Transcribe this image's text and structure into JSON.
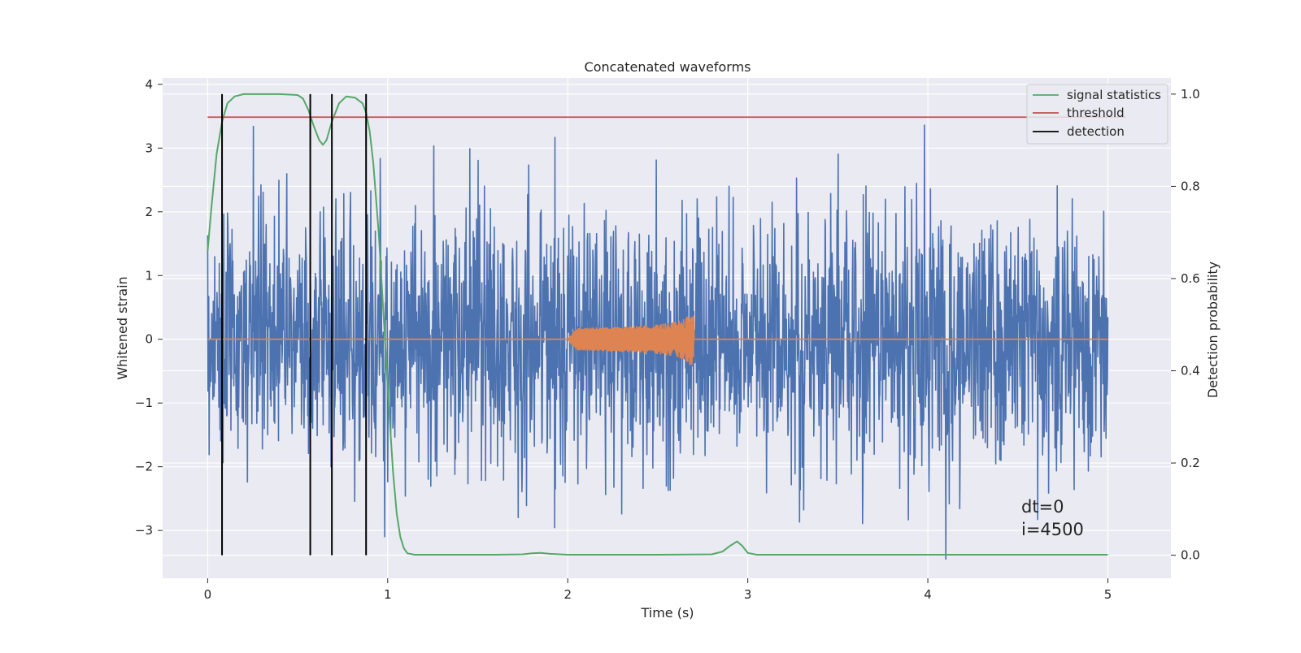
{
  "chart_data": {
    "type": "line",
    "title": "Concatenated waveforms",
    "xlabel": "Time (s)",
    "ylabel_left": "Whitened strain",
    "ylabel_right": "Detection probability",
    "xlim": [
      -0.25,
      5.35
    ],
    "ylim_left": [
      -3.75,
      4.1
    ],
    "ylim_right": [
      -0.05,
      1.035
    ],
    "x_ticks": [
      0,
      1,
      2,
      3,
      4,
      5
    ],
    "x_tick_labels": [
      "0",
      "1",
      "2",
      "3",
      "4",
      "5"
    ],
    "y_left_ticks": [
      -3,
      -2,
      -1,
      0,
      1,
      2,
      3,
      4
    ],
    "y_left_tick_labels": [
      "−3",
      "−2",
      "−1",
      "0",
      "1",
      "2",
      "3",
      "4"
    ],
    "y_right_ticks": [
      0.0,
      0.2,
      0.4,
      0.6,
      0.8,
      1.0
    ],
    "y_right_tick_labels": [
      "0.0",
      "0.2",
      "0.4",
      "0.6",
      "0.8",
      "1.0"
    ],
    "grid": true,
    "legend_position": "top-right",
    "legend": [
      {
        "label": "signal statistics",
        "color": "#55a868"
      },
      {
        "label": "threshold",
        "color": "#c44e52"
      },
      {
        "label": "detection",
        "color": "#000000"
      }
    ],
    "colors": {
      "strain": "#4c72b0",
      "injected_waveform": "#dd8452",
      "signal_statistics": "#55a868",
      "threshold": "#c44e52",
      "detection": "#000000",
      "plot_background": "#eaeaf2",
      "grid": "#ffffff"
    },
    "noise": {
      "axis": "left",
      "x_range": [
        0,
        5
      ],
      "core_amplitude": 1.0,
      "peak_range": [
        -3.1,
        3.47
      ],
      "outlier_min": {
        "x": 4.1,
        "y": -3.45
      }
    },
    "injected_waveform": {
      "axis": "left",
      "x_start": 2.0,
      "x_peak": 2.7,
      "peak_amplitude": 0.5
    },
    "signal_statistics": {
      "axis": "right",
      "x": [
        0.0,
        0.02,
        0.05,
        0.08,
        0.11,
        0.15,
        0.2,
        0.3,
        0.4,
        0.5,
        0.53,
        0.56,
        0.59,
        0.62,
        0.64,
        0.66,
        0.69,
        0.73,
        0.77,
        0.82,
        0.86,
        0.88,
        0.9,
        0.92,
        0.95,
        0.98,
        1.01,
        1.03,
        1.05,
        1.07,
        1.09,
        1.11,
        1.15,
        1.3,
        1.6,
        1.75,
        1.8,
        1.85,
        1.9,
        2.0,
        2.5,
        2.8,
        2.86,
        2.9,
        2.94,
        2.97,
        3.0,
        3.05,
        3.2,
        4.0,
        5.0
      ],
      "y": [
        0.66,
        0.75,
        0.87,
        0.94,
        0.98,
        0.995,
        1.0,
        1.0,
        1.0,
        0.998,
        0.99,
        0.965,
        0.93,
        0.9,
        0.89,
        0.9,
        0.94,
        0.98,
        0.995,
        0.992,
        0.98,
        0.96,
        0.92,
        0.85,
        0.7,
        0.5,
        0.3,
        0.18,
        0.09,
        0.04,
        0.015,
        0.004,
        0.001,
        0.001,
        0.001,
        0.002,
        0.004,
        0.005,
        0.003,
        0.001,
        0.001,
        0.002,
        0.008,
        0.02,
        0.03,
        0.02,
        0.005,
        0.001,
        0.001,
        0.001,
        0.001
      ]
    },
    "threshold": {
      "axis": "right",
      "value": 0.95,
      "x_range": [
        0,
        5.1
      ]
    },
    "detections": {
      "x": [
        0.08,
        0.57,
        0.69,
        0.88
      ],
      "right_y_range": [
        0.0,
        1.0
      ]
    },
    "annotations": [
      "dt=0",
      "i=4500"
    ]
  }
}
